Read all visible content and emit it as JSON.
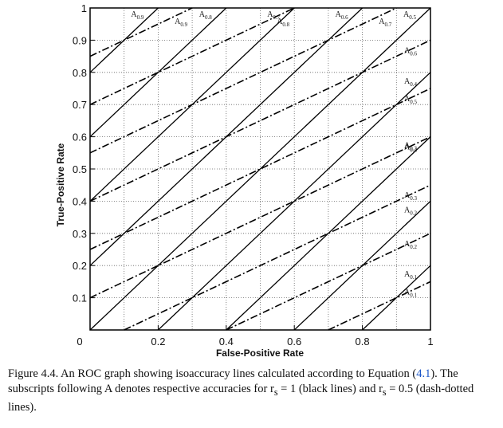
{
  "chart_data": {
    "type": "line",
    "xlabel": "False-Positive Rate",
    "ylabel": "True-Positive Rate",
    "xlim": [
      0,
      1
    ],
    "ylim": [
      0,
      1
    ],
    "x_ticks": [
      "0",
      "0.2",
      "0.4",
      "0.6",
      "0.8",
      "1"
    ],
    "y_ticks": [
      "0.1",
      "0.2",
      "0.3",
      "0.4",
      "0.5",
      "0.6",
      "0.7",
      "0.8",
      "0.9",
      "1"
    ],
    "grid": true,
    "series": [
      {
        "style": "solid",
        "slope": 1,
        "lines": [
          {
            "label": "0.9",
            "tpr_at_fpr0": 0.8
          },
          {
            "label": "0.8",
            "tpr_at_fpr0": 0.6
          },
          {
            "label": "0.7",
            "tpr_at_fpr0": 0.4
          },
          {
            "label": "0.6",
            "tpr_at_fpr0": 0.2
          },
          {
            "label": "0.5",
            "tpr_at_fpr0": 0.0
          },
          {
            "label": "0.4",
            "tpr_at_fpr0": -0.2
          },
          {
            "label": "0.3",
            "tpr_at_fpr0": -0.4
          },
          {
            "label": "0.2",
            "tpr_at_fpr0": -0.6
          },
          {
            "label": "0.1",
            "tpr_at_fpr0": -0.8
          }
        ]
      },
      {
        "style": "dash-dot",
        "slope": 0.5,
        "lines": [
          {
            "label": "0.9",
            "tpr_at_fpr0": 0.85
          },
          {
            "label": "0.8",
            "tpr_at_fpr0": 0.7
          },
          {
            "label": "0.7",
            "tpr_at_fpr0": 0.55
          },
          {
            "label": "0.6",
            "tpr_at_fpr0": 0.4
          },
          {
            "label": "0.5",
            "tpr_at_fpr0": 0.25
          },
          {
            "label": "0.4",
            "tpr_at_fpr0": 0.1
          },
          {
            "label": "0.3",
            "tpr_at_fpr0": -0.05
          },
          {
            "label": "0.2",
            "tpr_at_fpr0": -0.2
          },
          {
            "label": "0.1",
            "tpr_at_fpr0": -0.35
          }
        ]
      }
    ],
    "line_label_prefix": "A"
  },
  "caption": {
    "part1": "Figure 4.4. An ROC graph showing isoaccuracy lines calculated according to Equation (",
    "ref": "4.1",
    "part2": "). The subscripts following A denotes respective accuracies for r",
    "sub_s1": "s",
    "part3": " = 1 (black lines) and r",
    "sub_s2": "s",
    "part4": " = 0.5 (dash-dotted lines)."
  }
}
